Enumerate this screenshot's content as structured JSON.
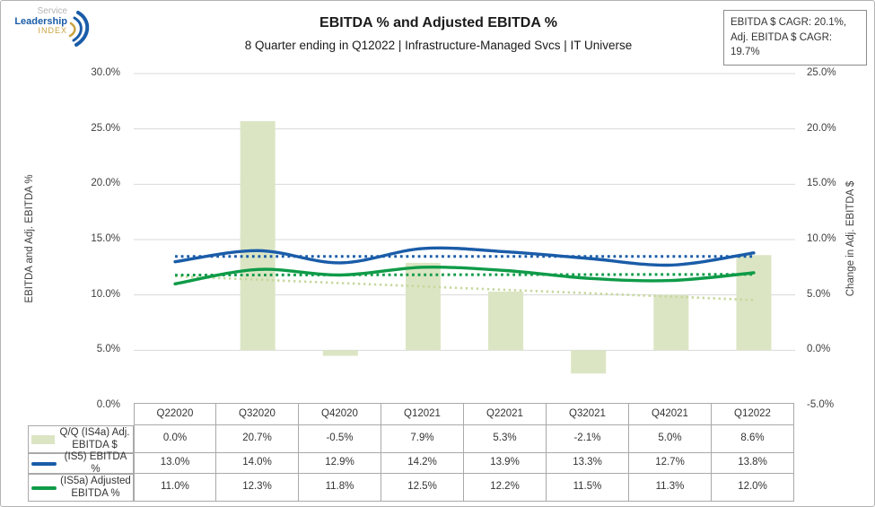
{
  "logo": {
    "line1": "Service",
    "line2": "Leadership",
    "line3": "INDEX"
  },
  "header": {
    "title": "EBITDA % and Adjusted EBITDA %",
    "subtitle": "8 Quarter ending in Q12022 | Infrastructure-Managed Svcs | IT Universe"
  },
  "cagr_box": {
    "line1": "EBITDA $ CAGR: 20.1%,",
    "line2": "Adj. EBITDA $ CAGR: 19.7%"
  },
  "axes": {
    "left": {
      "title": "EBITDA and Adj. EBITDA %",
      "ticks": [
        "30.0%",
        "25.0%",
        "20.0%",
        "15.0%",
        "10.0%",
        "5.0%",
        "0.0%"
      ]
    },
    "right": {
      "title": "Change in Adj. EBITDA $",
      "ticks": [
        "25.0%",
        "20.0%",
        "15.0%",
        "10.0%",
        "5.0%",
        "0.0%",
        "-5.0%"
      ]
    }
  },
  "colors": {
    "bar": "#dbe5c3",
    "bar_trend": "#c6d89e",
    "ebitda_line": "#1a5ca8",
    "adj_ebitda_line": "#0f9b48",
    "gridline": "#d9d9d9"
  },
  "chart_data": {
    "type": "bar",
    "subtype": "combo-bar-line-dual-axis",
    "title": "EBITDA % and Adjusted EBITDA %",
    "subtitle": "8 Quarter ending in Q12022 | Infrastructure-Managed Svcs | IT Universe",
    "categories": [
      "Q22020",
      "Q32020",
      "Q42020",
      "Q12021",
      "Q22021",
      "Q32021",
      "Q42021",
      "Q12022"
    ],
    "left_axis_label": "EBITDA and Adj. EBITDA %",
    "right_axis_label": "Change in Adj. EBITDA $",
    "left_ylim": [
      0,
      30
    ],
    "right_ylim": [
      -5,
      25
    ],
    "grid": true,
    "legend_position": "table-left",
    "series": [
      {
        "name": "Q/Q (IS4a) Adj. EBITDA $",
        "type": "bar",
        "axis": "right",
        "values": [
          0.0,
          20.7,
          -0.5,
          7.9,
          5.3,
          -2.1,
          5.0,
          8.6
        ],
        "labels": [
          "0.0%",
          "20.7%",
          "-0.5%",
          "7.9%",
          "5.3%",
          "-2.1%",
          "5.0%",
          "8.6%"
        ],
        "trendline": "linear"
      },
      {
        "name": "(IS5) EBITDA %",
        "type": "line",
        "axis": "left",
        "values": [
          13.0,
          14.0,
          12.9,
          14.2,
          13.9,
          13.3,
          12.7,
          13.8
        ],
        "labels": [
          "13.0%",
          "14.0%",
          "12.9%",
          "14.2%",
          "13.9%",
          "13.3%",
          "12.7%",
          "13.8%"
        ],
        "trendline": "linear"
      },
      {
        "name": "(IS5a) Adjusted EBITDA %",
        "type": "line",
        "axis": "left",
        "values": [
          11.0,
          12.3,
          11.8,
          12.5,
          12.2,
          11.5,
          11.3,
          12.0
        ],
        "labels": [
          "11.0%",
          "12.3%",
          "11.8%",
          "12.5%",
          "12.2%",
          "11.5%",
          "11.3%",
          "12.0%"
        ],
        "trendline": "linear"
      }
    ]
  }
}
